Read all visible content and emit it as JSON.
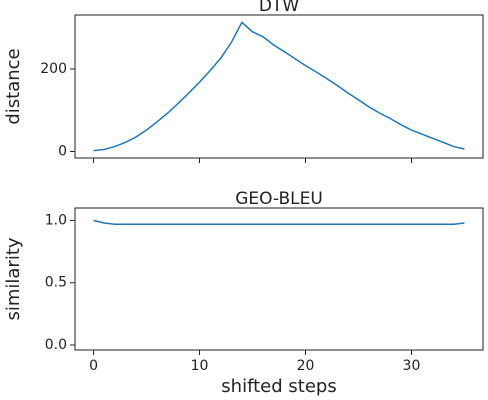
{
  "chart_data": [
    {
      "type": "line",
      "title": "DTW",
      "ylabel": "distance",
      "x": [
        0,
        1,
        2,
        3,
        4,
        5,
        6,
        7,
        8,
        9,
        10,
        11,
        12,
        13,
        14,
        15,
        16,
        17,
        18,
        19,
        20,
        21,
        22,
        23,
        24,
        25,
        26,
        27,
        28,
        29,
        30,
        31,
        32,
        33,
        34,
        35
      ],
      "series": [
        {
          "color": "#1f77b4",
          "values": [
            2,
            5,
            12,
            22,
            35,
            52,
            72,
            93,
            117,
            142,
            168,
            196,
            226,
            264,
            313,
            290,
            278,
            258,
            242,
            225,
            208,
            193,
            177,
            160,
            142,
            125,
            108,
            93,
            80,
            65,
            52,
            42,
            32,
            22,
            12,
            6
          ]
        }
      ],
      "xlim": [
        -1.75,
        36.75
      ],
      "xticks": [
        0,
        10,
        20,
        30
      ],
      "ylim": [
        -15.75,
        330.75
      ],
      "yticks": [
        0,
        200
      ]
    },
    {
      "type": "line",
      "title": "GEO-BLEU",
      "ylabel": "similarity",
      "xlabel": "shifted steps",
      "x": [
        0,
        1,
        2,
        3,
        4,
        5,
        6,
        7,
        8,
        9,
        10,
        11,
        12,
        13,
        14,
        15,
        16,
        17,
        18,
        19,
        20,
        21,
        22,
        23,
        24,
        25,
        26,
        27,
        28,
        29,
        30,
        31,
        32,
        33,
        34,
        35
      ],
      "series": [
        {
          "color": "#1f77b4",
          "values": [
            1.0,
            0.98,
            0.97,
            0.97,
            0.97,
            0.97,
            0.97,
            0.97,
            0.97,
            0.97,
            0.97,
            0.97,
            0.97,
            0.97,
            0.97,
            0.97,
            0.97,
            0.97,
            0.97,
            0.97,
            0.97,
            0.97,
            0.97,
            0.97,
            0.97,
            0.97,
            0.97,
            0.97,
            0.97,
            0.97,
            0.97,
            0.97,
            0.97,
            0.97,
            0.97,
            0.98
          ]
        }
      ],
      "xlim": [
        -1.75,
        36.75
      ],
      "xticks": [
        0,
        10,
        20,
        30
      ],
      "ylim": [
        -0.04,
        1.1
      ],
      "yticks": [
        {
          "value": 0,
          "label": "0.0"
        },
        {
          "value": 0.5,
          "label": "0.5"
        },
        {
          "value": 1,
          "label": "1.0"
        }
      ]
    }
  ]
}
